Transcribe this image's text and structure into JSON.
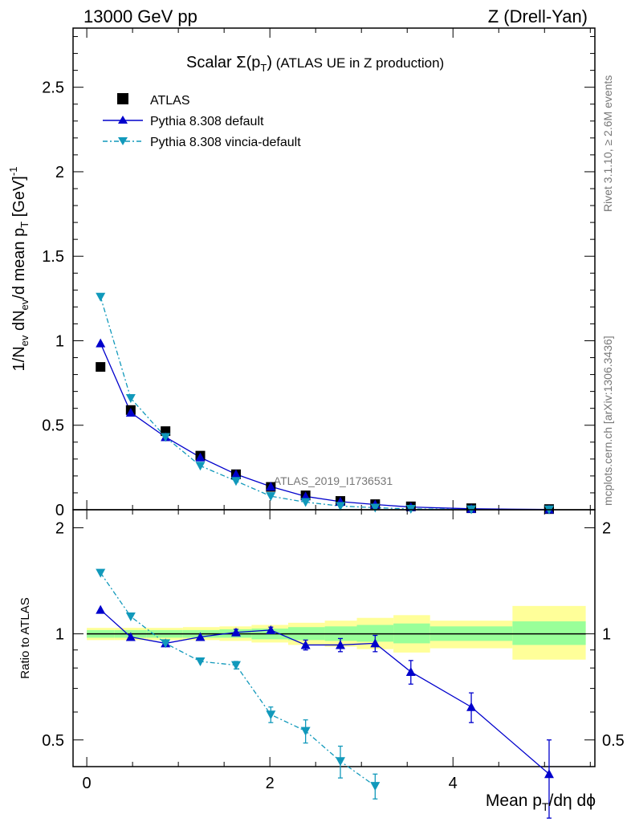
{
  "header": {
    "left": "13000 GeV pp",
    "right": "Z (Drell-Yan)"
  },
  "title": {
    "prefix": "Scalar ",
    "sigma": "Σ(p",
    "sub": "T",
    "close": ")",
    "suffix": " (ATLAS UE in Z production)"
  },
  "ylabel_main": {
    "p1": "1/N",
    "s1": "ev",
    "p2": " dN",
    "s2": "ev",
    "p3": "/d mean p",
    "s3": "T",
    "p4": " [GeV]",
    "sup": "-1"
  },
  "ylabel_ratio": "Ratio to ATLAS",
  "xlabel": {
    "p1": "Mean p",
    "s1": "T",
    "p2": "/dη dϕ"
  },
  "side": {
    "rivet": "Rivet 3.1.10, ≥ 2.6M events",
    "mcplots": "mcplots.cern.ch [arXiv:1306.3436]"
  },
  "watermark": "ATLAS_2019_I1736531",
  "legend": [
    {
      "name": "ATLAS",
      "marker": "square",
      "color": "#000000"
    },
    {
      "name": "Pythia 8.308 default",
      "marker": "triangle-up",
      "color": "#0000cc"
    },
    {
      "name": "Pythia 8.308 vincia-default",
      "marker": "triangle-down",
      "color": "#1199bb"
    }
  ],
  "main_ticks": [
    "0",
    "0.5",
    "1",
    "1.5",
    "2",
    "2.5"
  ],
  "ratio_ticks": [
    "0.5",
    "1",
    "2"
  ],
  "x_ticks": [
    "0",
    "2",
    "4"
  ],
  "chart_data": {
    "type": "scatter",
    "x_bins": [
      [
        0.0,
        0.3
      ],
      [
        0.3,
        0.65
      ],
      [
        0.65,
        1.05
      ],
      [
        1.05,
        1.45
      ],
      [
        1.45,
        1.8
      ],
      [
        1.8,
        2.2
      ],
      [
        2.2,
        2.6
      ],
      [
        2.6,
        2.95
      ],
      [
        2.95,
        3.35
      ],
      [
        3.35,
        3.75
      ],
      [
        3.75,
        4.65
      ],
      [
        4.65,
        5.45
      ]
    ],
    "x": [
      0.15,
      0.48,
      0.86,
      1.24,
      1.63,
      2.01,
      2.39,
      2.77,
      3.15,
      3.54,
      4.2,
      5.05
    ],
    "xlim": [
      -0.15,
      5.55
    ],
    "main": {
      "ylim": [
        0,
        2.85
      ],
      "series": [
        {
          "name": "ATLAS",
          "values": [
            0.845,
            0.59,
            0.465,
            0.32,
            0.21,
            0.135,
            0.085,
            0.052,
            0.033,
            0.02,
            0.009,
            0.004
          ]
        },
        {
          "name": "Pythia 8.308 default",
          "values": [
            0.985,
            0.575,
            0.43,
            0.31,
            0.21,
            0.137,
            0.079,
            0.048,
            0.031,
            0.016,
            0.0056,
            0.0016
          ]
        },
        {
          "name": "Pythia 8.308 vincia-default",
          "values": [
            1.26,
            0.66,
            0.43,
            0.26,
            0.17,
            0.08,
            0.045,
            0.022,
            0.012,
            0.005,
            0.002,
            0.001
          ]
        }
      ]
    },
    "ratio": {
      "ylog": true,
      "ylim": [
        0.42,
        2.25
      ],
      "band_inner": [
        [
          0.975,
          1.025
        ],
        [
          0.975,
          1.025
        ],
        [
          0.975,
          1.025
        ],
        [
          0.975,
          1.025
        ],
        [
          0.975,
          1.03
        ],
        [
          0.965,
          1.035
        ],
        [
          0.96,
          1.045
        ],
        [
          0.955,
          1.05
        ],
        [
          0.95,
          1.06
        ],
        [
          0.94,
          1.07
        ],
        [
          0.955,
          1.05
        ],
        [
          0.93,
          1.085
        ]
      ],
      "band_outer": [
        [
          0.96,
          1.04
        ],
        [
          0.96,
          1.04
        ],
        [
          0.96,
          1.04
        ],
        [
          0.96,
          1.045
        ],
        [
          0.955,
          1.05
        ],
        [
          0.945,
          1.06
        ],
        [
          0.93,
          1.075
        ],
        [
          0.92,
          1.09
        ],
        [
          0.905,
          1.11
        ],
        [
          0.885,
          1.13
        ],
        [
          0.91,
          1.09
        ],
        [
          0.845,
          1.2
        ]
      ],
      "series": [
        {
          "name": "Pythia 8.308 default",
          "values": [
            1.17,
            0.98,
            0.94,
            0.98,
            1.01,
            1.025,
            0.93,
            0.93,
            0.94,
            0.78,
            0.62,
            0.4
          ],
          "err": [
            0.0,
            0.0,
            0.0,
            0.0,
            0.02,
            0.02,
            0.03,
            0.04,
            0.05,
            0.06,
            0.06,
            0.1
          ]
        },
        {
          "name": "Pythia 8.308 vincia-default",
          "values": [
            1.49,
            1.12,
            0.94,
            0.835,
            0.815,
            0.59,
            0.53,
            0.435,
            0.37
          ],
          "err": [
            0.0,
            0.0,
            0.0,
            0.0,
            0.02,
            0.03,
            0.04,
            0.045,
            0.03
          ]
        }
      ]
    }
  }
}
